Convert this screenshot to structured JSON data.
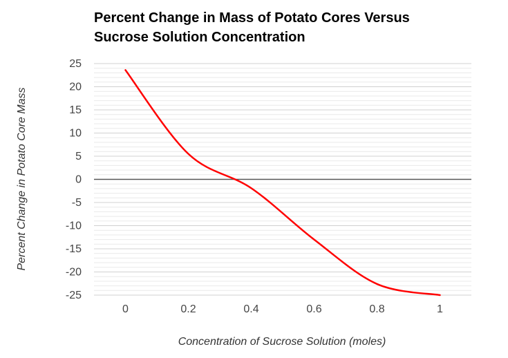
{
  "chart_data": {
    "type": "line",
    "title": "Percent Change in Mass of Potato Cores Versus Sucrose Solution Concentration",
    "title_lines": [
      "Percent Change in Mass of Potato Cores Versus",
      "Sucrose Solution Concentration"
    ],
    "xlabel": "Concentration of Sucrose Solution (moles)",
    "ylabel": "Percent Change in Potato Core Mass",
    "x_ticks": [
      "0",
      "0.2",
      "0.4",
      "0.6",
      "0.8",
      "1"
    ],
    "y_ticks": [
      "25",
      "20",
      "15",
      "10",
      "5",
      "0",
      "-5",
      "-10",
      "-15",
      "-20",
      "-25"
    ],
    "xlim": [
      -0.1,
      1.1
    ],
    "ylim": [
      -25,
      25
    ],
    "grid": true,
    "legend": "none",
    "series": [
      {
        "color": "#ff0000",
        "x": [
          0,
          0.2,
          0.4,
          0.6,
          0.8,
          1
        ],
        "y": [
          23.6,
          5.5,
          -1.9,
          -13.0,
          -22.6,
          -25.0
        ]
      }
    ],
    "zero_line_color": "#555555",
    "grid_color": "#dddddd"
  }
}
